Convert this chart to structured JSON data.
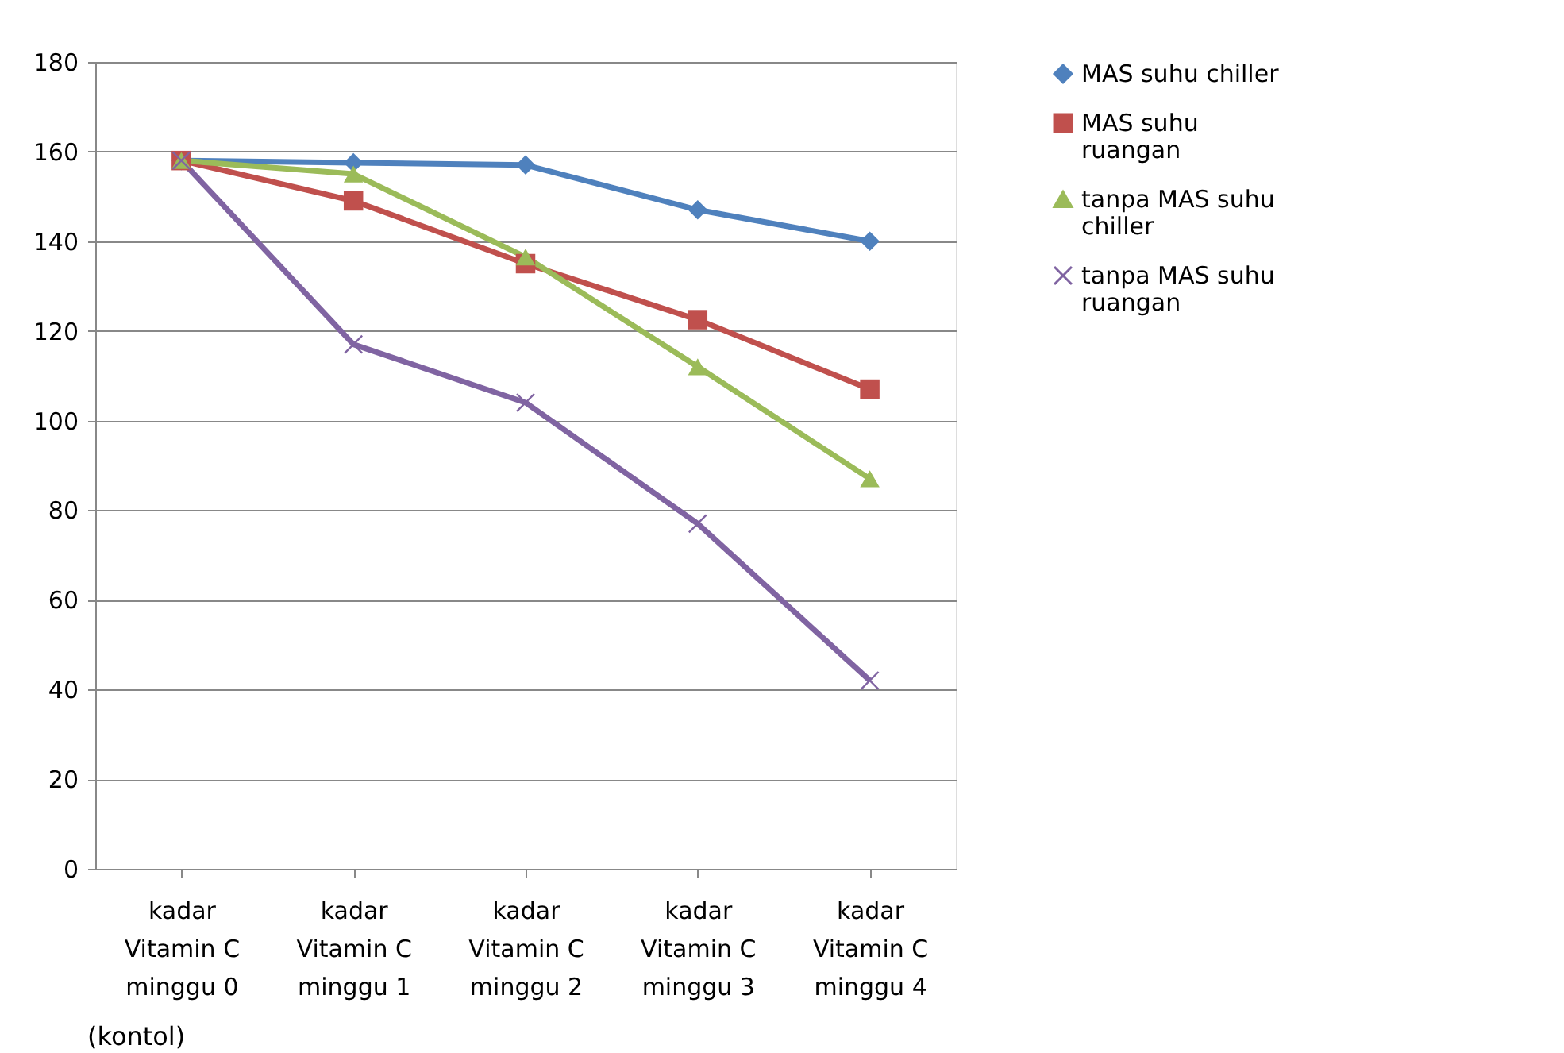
{
  "chart_data": {
    "type": "line",
    "categories": [
      "kadar Vitamin C minggu 0",
      "kadar Vitamin C minggu 1",
      "kadar Vitamin C minggu 2",
      "kadar Vitamin C minggu 3",
      "kadar Vitamin C minggu 4"
    ],
    "series": [
      {
        "name": "MAS suhu chiller",
        "color": "#4f81bd",
        "marker": "diamond",
        "values": [
          158,
          157.5,
          157,
          147,
          140
        ]
      },
      {
        "name": " MAS suhu ruangan",
        "color": "#c0504d",
        "marker": "square",
        "values": [
          158,
          149,
          135,
          122.5,
          107
        ]
      },
      {
        "name": "tanpa MAS suhu chiller",
        "color": "#9bbb59",
        "marker": "triangle",
        "values": [
          158,
          155,
          136.5,
          112,
          87
        ]
      },
      {
        "name": "tanpa MAS suhu ruangan",
        "color": "#8064a2",
        "marker": "cross",
        "values": [
          158,
          117,
          104,
          77,
          42
        ]
      }
    ],
    "ylim": [
      0,
      180
    ],
    "yticks": [
      0,
      20,
      40,
      60,
      80,
      100,
      120,
      140,
      160,
      180
    ],
    "grid": "y",
    "legend": "right",
    "line_style": "solid",
    "annotations": [
      "(kontol)"
    ]
  }
}
